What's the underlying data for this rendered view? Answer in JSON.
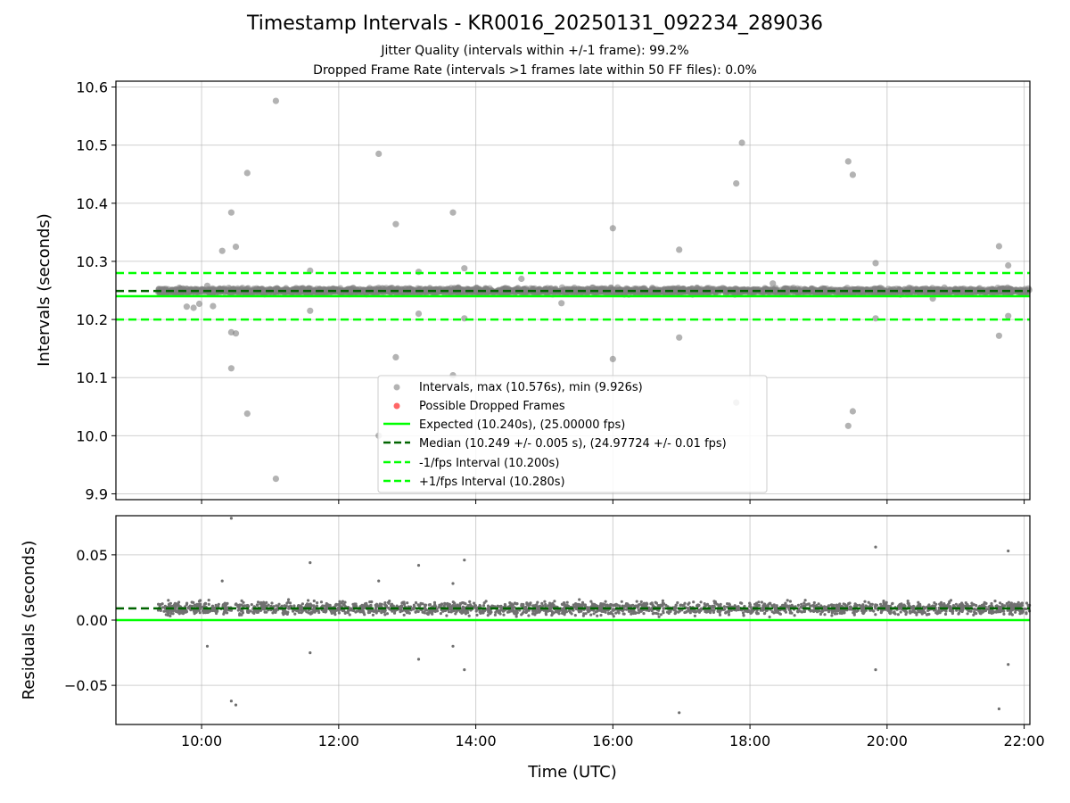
{
  "chart_data": [
    {
      "type": "scatter",
      "title": "Timestamp Intervals - KR0016_20250131_092234_289036",
      "subtitle_lines": [
        "Jitter Quality (intervals within +/-1 frame): 99.2%",
        "Dropped Frame Rate (intervals >1 frames late within 50 FF files): 0.0%"
      ],
      "ylabel": "Intervals (seconds)",
      "xlim": [
        "08:45",
        "22:05"
      ],
      "ylim": [
        9.89,
        10.61
      ],
      "yticks": [
        9.9,
        10.0,
        10.1,
        10.2,
        10.3,
        10.4,
        10.5,
        10.6
      ],
      "ytick_labels": [
        "9.9",
        "10.0",
        "10.1",
        "10.2",
        "10.3",
        "10.4",
        "10.5",
        "10.6"
      ],
      "grid": true,
      "legend_position": "bottom-center",
      "series": [
        {
          "name": "Intervals, max (10.576s), min (9.926s)",
          "color": "#808080",
          "marker": "circle",
          "band": {
            "x_start": "09:22",
            "x_end": "22:05",
            "center": 10.249,
            "spread": 0.007
          },
          "outliers": [
            [
              "09:47",
              10.222
            ],
            [
              "09:53",
              10.22
            ],
            [
              "09:58",
              10.227
            ],
            [
              "10:05",
              10.258
            ],
            [
              "10:10",
              10.223
            ],
            [
              "10:18",
              10.318
            ],
            [
              "10:26",
              10.384
            ],
            [
              "10:30",
              10.325
            ],
            [
              "10:26",
              10.178
            ],
            [
              "10:30",
              10.176
            ],
            [
              "10:26",
              10.116
            ],
            [
              "10:40",
              10.452
            ],
            [
              "10:40",
              10.038
            ],
            [
              "11:05",
              10.576
            ],
            [
              "11:05",
              9.926
            ],
            [
              "11:35",
              10.284
            ],
            [
              "11:35",
              10.215
            ],
            [
              "12:35",
              10.485
            ],
            [
              "12:35",
              10.0
            ],
            [
              "12:50",
              10.364
            ],
            [
              "12:50",
              10.135
            ],
            [
              "13:10",
              10.282
            ],
            [
              "13:10",
              10.21
            ],
            [
              "13:40",
              10.384
            ],
            [
              "13:40",
              10.104
            ],
            [
              "13:50",
              10.288
            ],
            [
              "13:50",
              10.202
            ],
            [
              "16:00",
              10.357
            ],
            [
              "16:00",
              10.132
            ],
            [
              "16:58",
              10.32
            ],
            [
              "16:58",
              10.169
            ],
            [
              "17:48",
              10.434
            ],
            [
              "17:53",
              10.504
            ],
            [
              "17:48",
              10.057
            ],
            [
              "19:26",
              10.472
            ],
            [
              "19:30",
              10.449
            ],
            [
              "19:26",
              10.017
            ],
            [
              "19:30",
              10.042
            ],
            [
              "19:50",
              10.297
            ],
            [
              "19:50",
              10.202
            ],
            [
              "21:38",
              10.326
            ],
            [
              "21:46",
              10.293
            ],
            [
              "21:38",
              10.172
            ],
            [
              "21:46",
              10.206
            ],
            [
              "14:40",
              10.27
            ],
            [
              "15:15",
              10.228
            ],
            [
              "18:20",
              10.262
            ],
            [
              "20:40",
              10.236
            ]
          ]
        },
        {
          "name": "Possible Dropped Frames",
          "color": "#ff0000",
          "marker": "circle",
          "values": []
        },
        {
          "name": "Expected (10.240s), (25.00000 fps)",
          "color": "#00ff00",
          "style": "solid",
          "y": 10.24
        },
        {
          "name": "Median (10.249 +/- 0.005 s), (24.97724 +/- 0.01 fps)",
          "color": "#006400",
          "style": "dashed",
          "y": 10.249
        },
        {
          "name": "-1/fps Interval (10.200s)",
          "color": "#00ff00",
          "style": "dashed",
          "y": 10.2
        },
        {
          "name": "+1/fps Interval (10.280s)",
          "color": "#00ff00",
          "style": "dashed",
          "y": 10.28
        }
      ]
    },
    {
      "type": "scatter",
      "ylabel": "Residuals (seconds)",
      "xlabel": "Time (UTC)",
      "xlim": [
        "08:45",
        "22:05"
      ],
      "ylim": [
        -0.08,
        0.08
      ],
      "yticks": [
        -0.05,
        0.0,
        0.05
      ],
      "ytick_labels": [
        "−0.05",
        "0.00",
        "0.05"
      ],
      "xticks": [
        "10:00",
        "12:00",
        "14:00",
        "16:00",
        "18:00",
        "20:00",
        "22:00"
      ],
      "grid": true,
      "series": [
        {
          "name": "",
          "color": "#808080",
          "marker": "point",
          "band": {
            "x_start": "09:22",
            "x_end": "22:05",
            "center": 0.009,
            "spread": 0.007
          },
          "outliers": [
            [
              "10:26",
              0.078
            ],
            [
              "10:26",
              -0.062
            ],
            [
              "10:30",
              -0.065
            ],
            [
              "11:35",
              0.044
            ],
            [
              "11:35",
              -0.025
            ],
            [
              "13:10",
              0.042
            ],
            [
              "13:10",
              -0.03
            ],
            [
              "13:40",
              0.028
            ],
            [
              "13:50",
              0.046
            ],
            [
              "13:50",
              -0.038
            ],
            [
              "13:40",
              -0.02
            ],
            [
              "16:58",
              -0.071
            ],
            [
              "19:50",
              0.056
            ],
            [
              "19:50",
              -0.038
            ],
            [
              "21:38",
              -0.068
            ],
            [
              "21:46",
              0.053
            ],
            [
              "21:46",
              -0.034
            ],
            [
              "10:05",
              -0.02
            ],
            [
              "10:18",
              0.03
            ],
            [
              "12:35",
              0.03
            ]
          ]
        },
        {
          "name": "",
          "color": "#006400",
          "style": "dashed",
          "y": 0.009
        },
        {
          "name": "",
          "color": "#00ff00",
          "style": "solid",
          "y": 0.0
        }
      ]
    }
  ]
}
